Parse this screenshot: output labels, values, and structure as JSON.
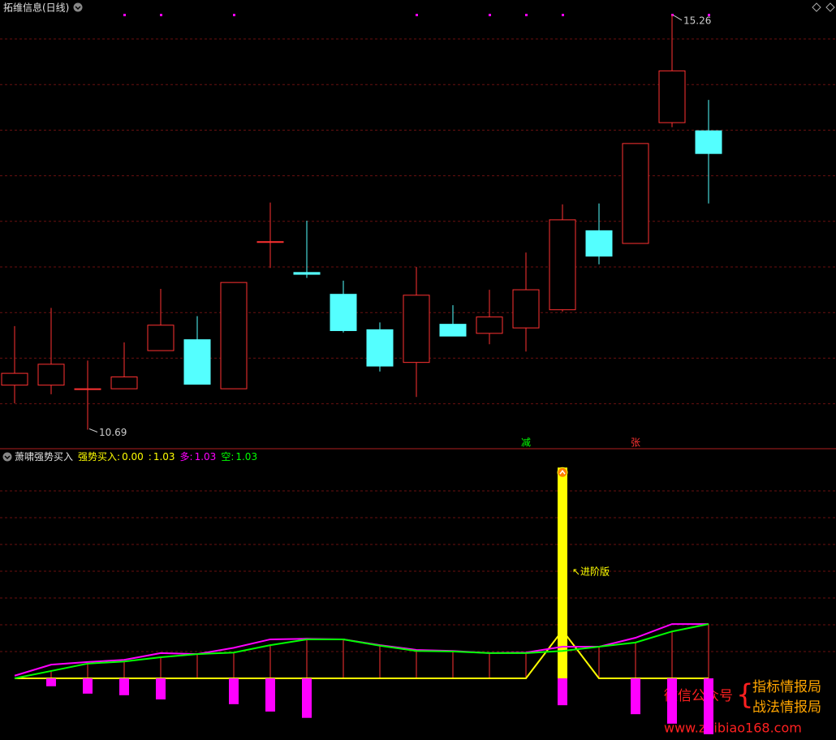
{
  "chart_data": [
    {
      "type": "candlestick",
      "title": "拓维信息(日线)",
      "categories": [
        null,
        null,
        null,
        null,
        null,
        null,
        null,
        null,
        null,
        null,
        null,
        null,
        null,
        null,
        null,
        null,
        null,
        null,
        null,
        null
      ],
      "open": [
        11.18,
        11.18,
        11.14,
        11.14,
        11.56,
        11.68,
        11.14,
        12.76,
        12.42,
        12.18,
        11.79,
        11.43,
        11.85,
        11.75,
        11.81,
        12.01,
        12.88,
        12.74,
        14.07,
        13.98
      ],
      "high": [
        11.83,
        12.03,
        11.45,
        11.65,
        12.24,
        11.94,
        12.31,
        13.19,
        12.99,
        12.33,
        11.87,
        12.48,
        12.06,
        12.23,
        12.64,
        13.17,
        13.18,
        13.84,
        15.26,
        14.32
      ],
      "low": [
        10.98,
        11.08,
        10.69,
        11.14,
        11.56,
        11.19,
        11.14,
        12.47,
        12.36,
        11.76,
        11.33,
        11.05,
        11.72,
        11.63,
        11.55,
        11.99,
        12.51,
        12.74,
        14.02,
        13.18
      ],
      "close": [
        11.31,
        11.41,
        11.14,
        11.27,
        11.84,
        11.19,
        12.31,
        12.76,
        12.4,
        11.78,
        11.39,
        12.17,
        11.72,
        11.93,
        12.23,
        13.0,
        12.6,
        13.84,
        14.64,
        13.73
      ],
      "ylim": [
        10.48,
        15.42
      ],
      "grid": true,
      "up_color": "#ff3232",
      "down_color": "#54ffff",
      "signals": [
        {
          "text": "减",
          "index": 14,
          "color": "#00ff00"
        },
        {
          "text": "张",
          "index": 17,
          "color": "#ff3232"
        }
      ]
    },
    {
      "type": "indicator",
      "title": "萧啸强势买入",
      "header": [
        {
          "label": "强势买入:",
          "color": "#ffff00",
          "value": {
            "value": 0,
            "label": "0.00"
          }
        },
        {
          "label": ":",
          "color": "#ffff00",
          "value": 1.03
        },
        {
          "label": "多:",
          "color": "#ff00ff",
          "value": 1.03
        },
        {
          "label": "空:",
          "color": "#00ff00",
          "value": 1.03
        }
      ],
      "series": [
        {
          "kind": "spike",
          "color": "#ffff00",
          "values": [
            null,
            null,
            null,
            null,
            null,
            null,
            null,
            null,
            null,
            null,
            null,
            null,
            null,
            null,
            null,
            4.0,
            null,
            null,
            null,
            null
          ]
        },
        {
          "kind": "line",
          "color": "#ffff00",
          "values": [
            0,
            0,
            0,
            0,
            0,
            0,
            0,
            0,
            0,
            0,
            0,
            0,
            0,
            0,
            0,
            0.91,
            0,
            0,
            0,
            0
          ]
        },
        {
          "kind": "line",
          "color": "#ff00ff",
          "values": [
            0.05,
            0.26,
            0.31,
            0.35,
            0.48,
            0.46,
            0.58,
            0.74,
            0.75,
            0.74,
            0.63,
            0.54,
            0.52,
            0.48,
            0.49,
            0.6,
            0.6,
            0.77,
            1.03,
            1.03
          ]
        },
        {
          "kind": "line",
          "color": "#00ff00",
          "values": [
            0,
            0.14,
            0.28,
            0.32,
            0.4,
            0.46,
            0.49,
            0.63,
            0.74,
            0.74,
            0.62,
            0.52,
            0.51,
            0.48,
            0.48,
            0.52,
            0.6,
            0.68,
            0.89,
            1.03
          ]
        },
        {
          "kind": "bar",
          "color": "#ff00ff",
          "values": [
            null,
            -0.15,
            -0.29,
            -0.32,
            -0.4,
            null,
            -0.49,
            -0.63,
            -0.75,
            null,
            null,
            null,
            null,
            null,
            null,
            -0.51,
            null,
            -0.68,
            -0.86,
            -1.06
          ]
        }
      ],
      "stick_color": "#ff3232",
      "ylim": [
        -1.17,
        4.25
      ],
      "grid": true,
      "annotation": "↖进阶版"
    }
  ],
  "watermark": {
    "line1": "微信公众号",
    "line2": "指标情报局",
    "line3": "战法情报局",
    "url": "www.zhibiao168.com"
  }
}
